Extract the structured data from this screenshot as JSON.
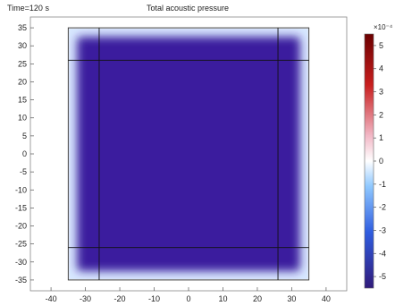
{
  "header": {
    "time_label": "Time=120 s",
    "title": "Total acoustic pressure"
  },
  "colorbar": {
    "exponent_label": "×10⁻⁴",
    "ticks": [
      5,
      4,
      3,
      2,
      1,
      0,
      -1,
      -2,
      -3,
      -4,
      -5
    ],
    "range": [
      -5.5,
      5.5
    ],
    "colors": {
      "max": "#6b0000",
      "high": "#c81e1e",
      "mid_high": "#f2b8c6",
      "zero": "#ffffff",
      "mid_low": "#8fc8ff",
      "low": "#2f5de0",
      "min": "#301a7a"
    }
  },
  "chart_data": {
    "type": "heatmap",
    "title": "Total acoustic pressure",
    "xlabel": "",
    "ylabel": "",
    "xlim": [
      -46,
      46
    ],
    "ylim": [
      -38,
      38
    ],
    "xticks": [
      -40,
      -30,
      -20,
      -10,
      0,
      10,
      20,
      30,
      40
    ],
    "yticks": [
      -35,
      -30,
      -25,
      -20,
      -15,
      -10,
      -5,
      0,
      5,
      10,
      15,
      20,
      25,
      30,
      35
    ],
    "domain": {
      "x": [
        -35,
        35
      ],
      "y": [
        -35,
        35
      ]
    },
    "field_value_interior": -4.6,
    "field_value_edge": 0.5,
    "grid_lines_x": [
      -26,
      26
    ],
    "grid_lines_y": [
      -26,
      26
    ],
    "colors": {
      "interior": "#3a1f9e",
      "edge_light": "#d8e8ff",
      "domain_background": "#f0f0f0",
      "outline": "#333333"
    }
  }
}
